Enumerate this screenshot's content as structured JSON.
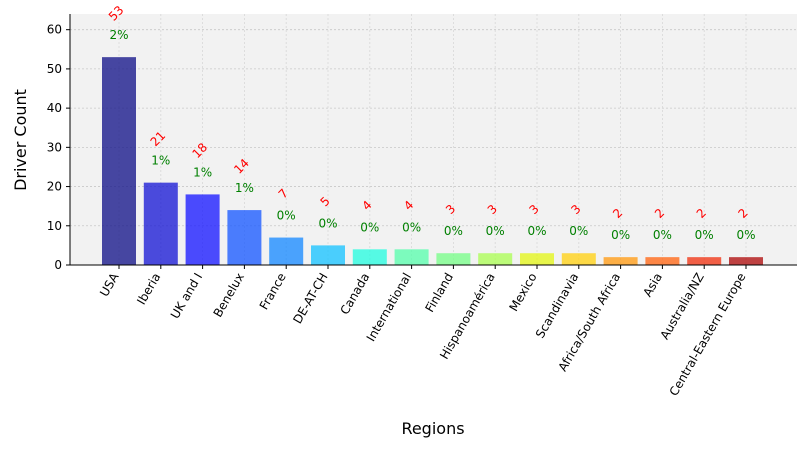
{
  "chart_data": {
    "type": "bar",
    "title": "",
    "xlabel": "Regions",
    "ylabel": "Driver Count",
    "ylim": [
      0,
      64
    ],
    "yticks": [
      0,
      10,
      20,
      30,
      40,
      50,
      60
    ],
    "grid": true,
    "categories": [
      "USA",
      "Iberia",
      "UK and I",
      "Benelux",
      "France",
      "DE-AT-CH",
      "Canada",
      "International",
      "Finland",
      "Hispanoamérica",
      "Mexico",
      "Scandinavia",
      "Africa/South Africa",
      "Asia",
      "Australia/NZ",
      "Central-Eastern Europe"
    ],
    "values": [
      53,
      21,
      18,
      14,
      7,
      5,
      4,
      4,
      3,
      3,
      3,
      3,
      2,
      2,
      2,
      2
    ],
    "count_labels": [
      "53",
      "21",
      "18",
      "14",
      "7",
      "5",
      "4",
      "4",
      "3",
      "3",
      "3",
      "3",
      "2",
      "2",
      "2",
      "2"
    ],
    "percent_labels": [
      "2%",
      "1%",
      "1%",
      "1%",
      "0%",
      "0%",
      "0%",
      "0%",
      "0%",
      "0%",
      "0%",
      "0%",
      "0%",
      "0%",
      "0%",
      "0%"
    ],
    "bar_colors": [
      "#1a1a8c",
      "#1f1fd6",
      "#1f1fff",
      "#1f5eff",
      "#1f8dff",
      "#1fc4ff",
      "#2dfbe0",
      "#5efdaf",
      "#7cfd8c",
      "#aefd5a",
      "#e3f521",
      "#ffd21a",
      "#ff9e1a",
      "#ff6a1a",
      "#f03a1a",
      "#b01414"
    ],
    "count_label_color": "#ff0000",
    "percent_label_color": "#008000"
  }
}
